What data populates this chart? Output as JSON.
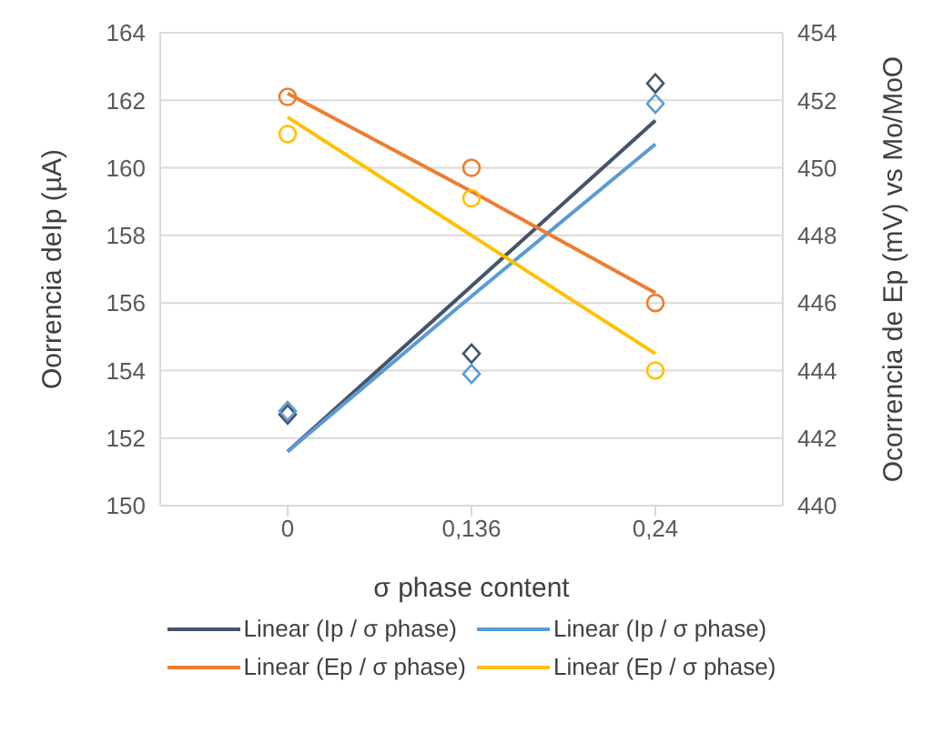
{
  "chart_data": {
    "type": "scatter",
    "xlabel": "σ phase content",
    "ylabel": "Oorrencia deIp (µA)",
    "y2label": "Ocorrencia de Ep (mV) vs Mo/MoO",
    "categories": [
      "0",
      "0,136",
      "0,24"
    ],
    "ylim": [
      150,
      164
    ],
    "yticks": [
      150,
      152,
      154,
      156,
      158,
      160,
      162,
      164
    ],
    "y2lim": [
      440,
      454
    ],
    "y2ticks": [
      440,
      442,
      444,
      446,
      448,
      450,
      452,
      454
    ],
    "grid": "y",
    "legend": "bottom",
    "series": [
      {
        "type": "scatter",
        "color": "#44546a",
        "marker": "diamond",
        "values": [
          152.7,
          154.5,
          162.5
        ]
      },
      {
        "type": "scatter",
        "color": "#5b9bd5",
        "marker": "diamond",
        "values": [
          152.8,
          153.9,
          161.9
        ]
      },
      {
        "type": "scatter",
        "color": "#ed7d31",
        "marker": "circle",
        "axis": "y2",
        "values": [
          452.1,
          450.0,
          446.0
        ]
      },
      {
        "type": "scatter",
        "color": "#ffc000",
        "marker": "circle",
        "axis": "y2",
        "values": [
          451.0,
          449.1,
          444.0
        ]
      },
      {
        "type": "line",
        "name": "Linear (Ip / σ phase)",
        "color": "#44546a",
        "marker": "none",
        "values": [
          151.6,
          156.5,
          161.4
        ]
      },
      {
        "type": "line",
        "name": "Linear (Ip / σ phase)",
        "color": "#5b9bd5",
        "marker": "none",
        "values": [
          151.6,
          156.2,
          160.7
        ]
      },
      {
        "type": "line",
        "name": "Linear (Ep / σ phase)",
        "color": "#ed7d31",
        "marker": "none",
        "axis": "y2",
        "values": [
          452.2,
          449.3,
          446.3
        ]
      },
      {
        "type": "line",
        "name": "Linear (Ep / σ phase)",
        "color": "#ffc000",
        "marker": "none",
        "axis": "y2",
        "values": [
          451.5,
          448.0,
          444.5
        ]
      }
    ]
  }
}
